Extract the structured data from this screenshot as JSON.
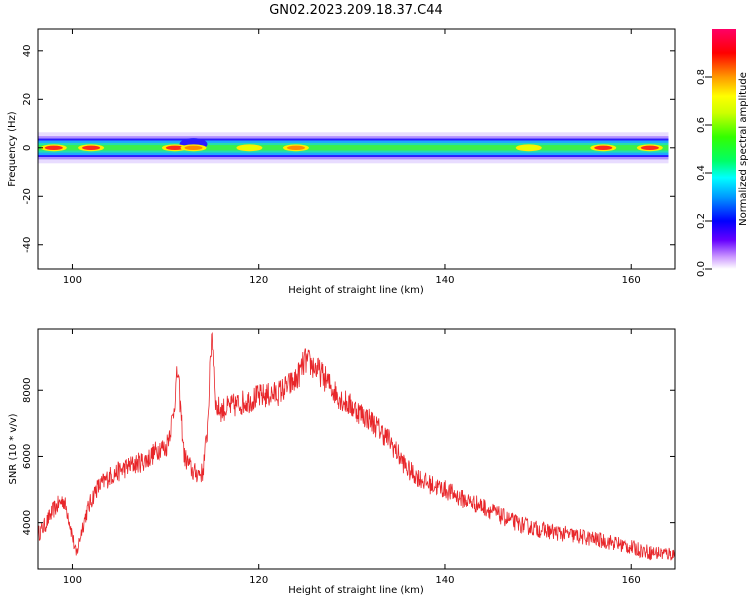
{
  "title": "GN02.2023.209.18.37.C44",
  "chart_data": [
    {
      "type": "heatmap",
      "xlabel": "Height of straight line (km)",
      "ylabel": "Frequency (Hz)",
      "xlim": [
        96.3,
        164.7
      ],
      "ylim": [
        -50,
        49
      ],
      "xticks": [
        100,
        120,
        140,
        160
      ],
      "yticks": [
        40,
        20,
        0,
        -20,
        -40
      ],
      "colorbar": {
        "label": "Normalized spectral amplitude",
        "range": [
          0.0,
          1.0
        ],
        "ticks": [
          0.0,
          0.2,
          0.4,
          0.6,
          0.8
        ]
      },
      "band": {
        "center_hz": 0,
        "half_width_hz": 4,
        "x_start_km": 96.3,
        "x_end_km": 164
      },
      "peaks": [
        {
          "x_km": 98.0,
          "amp": 0.95
        },
        {
          "x_km": 102.0,
          "amp": 0.95
        },
        {
          "x_km": 111.0,
          "amp": 0.9
        },
        {
          "x_km": 113.0,
          "amp": 0.85
        },
        {
          "x_km": 119.0,
          "amp": 0.75
        },
        {
          "x_km": 124.0,
          "amp": 0.8
        },
        {
          "x_km": 149.0,
          "amp": 0.75
        },
        {
          "x_km": 157.0,
          "amp": 0.95
        },
        {
          "x_km": 162.0,
          "amp": 1.0
        }
      ]
    },
    {
      "type": "line",
      "xlabel": "Height of straight line (km)",
      "ylabel": "SNR (10 * v/v)",
      "xlim": [
        96.3,
        164.7
      ],
      "ylim": [
        2600,
        9850
      ],
      "xticks": [
        100,
        120,
        140,
        160
      ],
      "yticks": [
        4000,
        6000,
        8000
      ],
      "color": "#e8262a",
      "series": [
        {
          "x": [
            96.3,
            97.0,
            98.0,
            99.0,
            99.5,
            100.0,
            100.4,
            101.0,
            101.5,
            102.5,
            104.0,
            106.0,
            108.0,
            109.5,
            110.0,
            110.8,
            111.3,
            112.0,
            113.0,
            114.0,
            114.5,
            115.0,
            115.4,
            116.0,
            118.0,
            120.0,
            122.0,
            124.0,
            125.0,
            126.0,
            127.0,
            128.0,
            129.0,
            130.0,
            132.0,
            134.0,
            136.0,
            138.0,
            140.0,
            142.0,
            144.0,
            146.0,
            148.0,
            150.0,
            152.0,
            154.0,
            156.0,
            158.0,
            160.0,
            162.0,
            164.7
          ],
          "values": [
            3650,
            3900,
            4400,
            4700,
            4300,
            3600,
            3000,
            3800,
            4300,
            5000,
            5400,
            5700,
            5900,
            6300,
            6200,
            7200,
            8600,
            6000,
            5500,
            5500,
            6800,
            9850,
            7500,
            7400,
            7600,
            7800,
            7900,
            8300,
            8900,
            8700,
            8400,
            8000,
            7700,
            7500,
            7100,
            6500,
            5600,
            5200,
            5000,
            4700,
            4500,
            4200,
            3950,
            3800,
            3700,
            3600,
            3500,
            3400,
            3250,
            3100,
            3050
          ]
        }
      ]
    }
  ]
}
